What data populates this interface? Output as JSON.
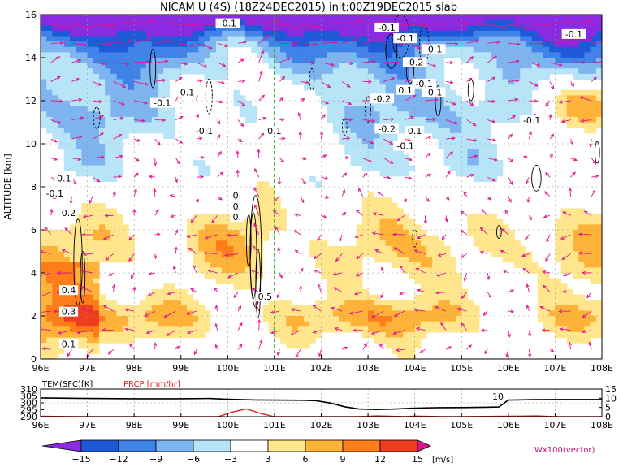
{
  "colors": {
    "vector": "#e0148c",
    "contour": "#000000",
    "meridian": "#22aa22",
    "temp_line": "#000000",
    "prcp_line": "#e0201f"
  },
  "chart_data": [
    {
      "type": "heatmap",
      "title": "NICAM U (4S) (18Z24DEC2015) init:00Z19DEC2015 slab",
      "ylabel": "ALTITUDE [km]",
      "xlabel": "",
      "x_ticks": [
        "96E",
        "97E",
        "98E",
        "99E",
        "100E",
        "101E",
        "102E",
        "103E",
        "104E",
        "105E",
        "106E",
        "107E",
        "108E"
      ],
      "x_range": [
        96,
        108
      ],
      "y_ticks": [
        "0",
        "2",
        "4",
        "6",
        "8",
        "10",
        "12",
        "14",
        "16"
      ],
      "y_range": [
        0,
        16
      ],
      "meridian_marker_lon": 101,
      "contour_labels": [
        {
          "text": "-0.1",
          "lon": 100.0,
          "alt": 15.6
        },
        {
          "text": "-0.1",
          "lon": 103.4,
          "alt": 15.4
        },
        {
          "text": "-0.1",
          "lon": 103.8,
          "alt": 14.9
        },
        {
          "text": "-0.1",
          "lon": 107.4,
          "alt": 15.1
        },
        {
          "text": "-0.1",
          "lon": 104.4,
          "alt": 14.4
        },
        {
          "text": "-0.2",
          "lon": 104.0,
          "alt": 13.8
        },
        {
          "text": "-0.1",
          "lon": 99.1,
          "alt": 12.4
        },
        {
          "text": "-0.1",
          "lon": 98.6,
          "alt": 11.9
        },
        {
          "text": "-0.1",
          "lon": 99.5,
          "alt": 10.6
        },
        {
          "text": "-0.2",
          "lon": 103.3,
          "alt": 12.1
        },
        {
          "text": "-0.1",
          "lon": 104.2,
          "alt": 12.8
        },
        {
          "text": "-0.1",
          "lon": 104.4,
          "alt": 12.4
        },
        {
          "text": "-0.1",
          "lon": 106.5,
          "alt": 11.1
        },
        {
          "text": "-0.2",
          "lon": 103.4,
          "alt": 10.7
        },
        {
          "text": "-0.1",
          "lon": 103.8,
          "alt": 9.9
        },
        {
          "text": "0.1",
          "lon": 101.0,
          "alt": 10.6
        },
        {
          "text": "0.1",
          "lon": 104.0,
          "alt": 10.6
        },
        {
          "text": "0.1",
          "lon": 103.8,
          "alt": 12.5
        },
        {
          "text": "0.1",
          "lon": 96.5,
          "alt": 8.4
        },
        {
          "text": "-0.1",
          "lon": 96.3,
          "alt": 7.7
        },
        {
          "text": "0.2",
          "lon": 96.6,
          "alt": 6.8
        },
        {
          "text": "0.4",
          "lon": 96.6,
          "alt": 3.2
        },
        {
          "text": "0.3",
          "lon": 96.6,
          "alt": 2.2
        },
        {
          "text": "0.1",
          "lon": 96.6,
          "alt": 0.7
        },
        {
          "text": "0.5",
          "lon": 100.8,
          "alt": 2.9
        },
        {
          "text": "0.",
          "lon": 100.2,
          "alt": 7.6
        },
        {
          "text": "0.",
          "lon": 100.2,
          "alt": 7.1
        },
        {
          "text": "0.",
          "lon": 100.2,
          "alt": 6.6
        }
      ]
    },
    {
      "type": "line",
      "title": "",
      "labels": {
        "temp": "TEM(SFC)[K]",
        "prcp": "PRCP [mm/hr]"
      },
      "x_ticks": [
        "96E",
        "97E",
        "98E",
        "99E",
        "100E",
        "101E",
        "102E",
        "103E",
        "104E",
        "105E",
        "106E",
        "107E",
        "108E"
      ],
      "x_range": [
        96,
        108
      ],
      "left_ticks": [
        "310",
        "305",
        "300",
        "295",
        "290"
      ],
      "left_range": [
        290,
        310
      ],
      "right_ticks": [
        "15",
        "10",
        "5",
        "0"
      ],
      "right_range": [
        0,
        15
      ],
      "series": [
        {
          "name": "TEM(SFC)[K]",
          "axis": "left",
          "x": [
            96,
            97,
            98,
            99,
            99.6,
            100,
            100.6,
            101,
            101.6,
            101.9,
            102.2,
            102.5,
            102.8,
            103.2,
            103.6,
            104,
            104.5,
            105,
            105.5,
            105.8,
            106,
            106.5,
            107,
            107.5,
            108
          ],
          "values": [
            303.6,
            303.2,
            303.0,
            303.0,
            303.2,
            302.6,
            302.1,
            302.0,
            301.9,
            301.5,
            299.8,
            297.2,
            295.5,
            295.2,
            295.5,
            296.2,
            296.5,
            296.6,
            296.8,
            297.0,
            302.0,
            302.3,
            302.4,
            302.4,
            302.4
          ]
        },
        {
          "name": "PRCP [mm/hr]",
          "axis": "right",
          "x": [
            96,
            96.5,
            97,
            97.5,
            98,
            99,
            99.8,
            100.1,
            100.4,
            100.7,
            101,
            102,
            102.8,
            103.2,
            103.8,
            104,
            104.6,
            105,
            106,
            106.6,
            107,
            108
          ],
          "values": [
            0.2,
            0.1,
            0,
            0,
            0,
            0,
            0,
            2.5,
            4.2,
            1.8,
            0,
            0,
            0,
            0.4,
            0,
            0.3,
            0,
            0,
            0.2,
            0.4,
            0,
            0
          ]
        }
      ],
      "annotation": "10"
    },
    {
      "type": "colorbar",
      "tick_labels": [
        "−15",
        "−12",
        "−9",
        "−6",
        "−3",
        "3",
        "6",
        "9",
        "12",
        "15"
      ],
      "colors": [
        "#8a2be2",
        "#1e5ad8",
        "#3f82e8",
        "#7eb4f0",
        "#b8e4f8",
        "#ffffff",
        "#ffe68c",
        "#ffb238",
        "#ff7c1a",
        "#f03c1e",
        "#b8100c",
        "#e0148c"
      ],
      "unit": "[m/s]",
      "vector_label": "Wx100(vector)"
    }
  ]
}
